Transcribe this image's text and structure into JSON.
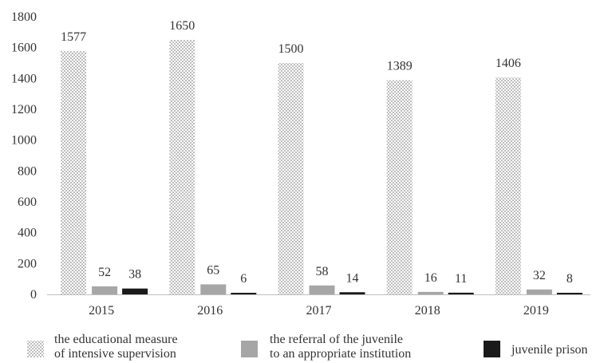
{
  "chart_data": {
    "type": "bar",
    "categories": [
      "2015",
      "2016",
      "2017",
      "2018",
      "2019"
    ],
    "series": [
      {
        "name": "the educational measure of intensive supervision",
        "legend_lines": [
          "the educational measure",
          "of intensive supervision"
        ],
        "values": [
          1577,
          1650,
          1500,
          1389,
          1406
        ],
        "pattern": "checkered",
        "color": "#d9d9d9"
      },
      {
        "name": "the referral of the juvenile to an appropriate institution",
        "legend_lines": [
          "the referral of the juvenile",
          "to an appropriate institution"
        ],
        "values": [
          52,
          65,
          58,
          16,
          32
        ],
        "pattern": "solid",
        "color": "#a6a6a6"
      },
      {
        "name": "juvenile prison",
        "legend_lines": [
          "juvenile prison"
        ],
        "values": [
          38,
          6,
          14,
          11,
          8
        ],
        "pattern": "solid",
        "color": "#1a1a1a"
      }
    ],
    "ylim": [
      0,
      1800
    ],
    "yticks": [
      0,
      200,
      400,
      600,
      800,
      1000,
      1200,
      1400,
      1600,
      1800
    ],
    "title": "",
    "xlabel": "",
    "ylabel": "",
    "grid": false,
    "legend": "bottom"
  }
}
